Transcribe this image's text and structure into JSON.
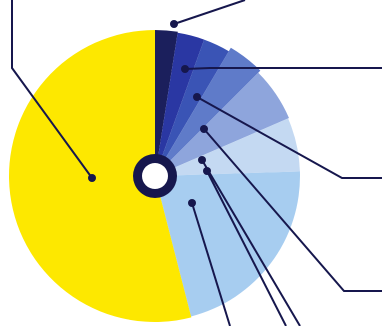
{
  "chart_data": {
    "type": "pie",
    "title": "",
    "slices": [
      {
        "value": 2.5,
        "color": "#1b1f5c"
      },
      {
        "value": 3.0,
        "color": "#2a37a3"
      },
      {
        "value": 3.0,
        "color": "#3a54b5"
      },
      {
        "value": 4.0,
        "color": "#5f7bc9"
      },
      {
        "value": 6.0,
        "color": "#8ea5dc"
      },
      {
        "value": 6.0,
        "color": "#c4d9f2"
      },
      {
        "value": 21.5,
        "color": "#a7cdf0"
      },
      {
        "value": 54.0,
        "color": "#fde800"
      }
    ],
    "center_ring_color": "#16174d",
    "leader_line_color": "#16174d",
    "legend": "none",
    "grid": false
  }
}
